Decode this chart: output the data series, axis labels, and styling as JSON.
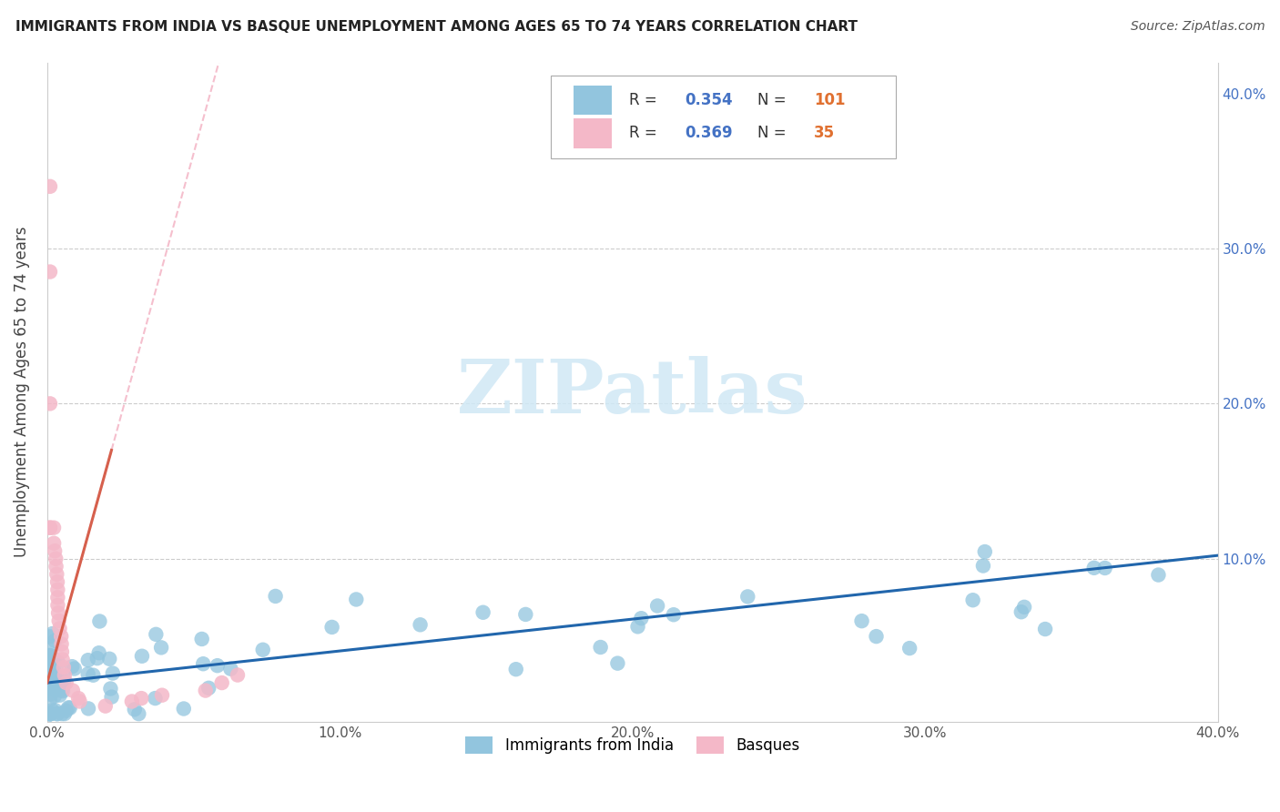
{
  "title": "IMMIGRANTS FROM INDIA VS BASQUE UNEMPLOYMENT AMONG AGES 65 TO 74 YEARS CORRELATION CHART",
  "source": "Source: ZipAtlas.com",
  "ylabel": "Unemployment Among Ages 65 to 74 years",
  "xlim": [
    0,
    0.4
  ],
  "ylim": [
    -0.005,
    0.42
  ],
  "xtick_vals": [
    0.0,
    0.1,
    0.2,
    0.3,
    0.4
  ],
  "ytick_vals": [
    0.0,
    0.1,
    0.2,
    0.3,
    0.4
  ],
  "xticklabels": [
    "0.0%",
    "10.0%",
    "20.0%",
    "30.0%",
    "40.0%"
  ],
  "yticklabels_right": [
    "",
    "10.0%",
    "20.0%",
    "30.0%",
    "40.0%"
  ],
  "legend_R_india": "0.354",
  "legend_N_india": "101",
  "legend_R_basque": "0.369",
  "legend_N_basque": "35",
  "blue_scatter_color": "#92c5de",
  "pink_scatter_color": "#f4b8c8",
  "blue_line_color": "#2166ac",
  "pink_line_color": "#d6604d",
  "dash_line_color": "#f4b8c8",
  "watermark_color": "#d0e8f5",
  "grid_color": "#cccccc",
  "title_color": "#222222",
  "source_color": "#555555",
  "ylabel_color": "#444444",
  "right_tick_color": "#4472c4",
  "legend_R_color": "#4472c4",
  "legend_N_color": "#e07030"
}
